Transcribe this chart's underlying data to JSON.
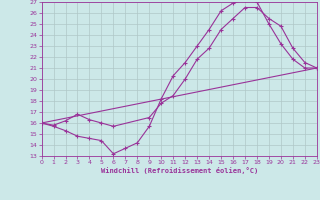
{
  "xlabel": "Windchill (Refroidissement éolien,°C)",
  "xlim": [
    0,
    23
  ],
  "ylim": [
    13,
    27
  ],
  "xticks": [
    0,
    1,
    2,
    3,
    4,
    5,
    6,
    7,
    8,
    9,
    10,
    11,
    12,
    13,
    14,
    15,
    16,
    17,
    18,
    19,
    20,
    21,
    22,
    23
  ],
  "yticks": [
    13,
    14,
    15,
    16,
    17,
    18,
    19,
    20,
    21,
    22,
    23,
    24,
    25,
    26,
    27
  ],
  "bg_color": "#cce8e8",
  "grid_color": "#b0c8c8",
  "line_color": "#993399",
  "line1_x": [
    0,
    1,
    2,
    3,
    4,
    5,
    6,
    7,
    8,
    9,
    10,
    11,
    12,
    13,
    14,
    15,
    16,
    17,
    18,
    19,
    20,
    21,
    22,
    23
  ],
  "line1_y": [
    16.0,
    15.7,
    15.3,
    14.8,
    14.6,
    14.4,
    13.2,
    13.7,
    14.2,
    15.7,
    18.2,
    20.3,
    21.5,
    23.0,
    24.5,
    26.2,
    26.9,
    27.2,
    27.0,
    25.0,
    23.2,
    21.8,
    21.0,
    21.0
  ],
  "line2_x": [
    0,
    1,
    2,
    3,
    4,
    5,
    6,
    9,
    10,
    11,
    12,
    13,
    14,
    15,
    16,
    17,
    18,
    19,
    20,
    21,
    22,
    23
  ],
  "line2_y": [
    16.0,
    15.8,
    16.2,
    16.8,
    16.3,
    16.0,
    15.7,
    16.5,
    17.8,
    18.5,
    20.0,
    21.8,
    22.8,
    24.5,
    25.5,
    26.5,
    26.5,
    25.5,
    24.8,
    22.8,
    21.5,
    21.0
  ],
  "line3_x": [
    0,
    23
  ],
  "line3_y": [
    16.0,
    21.0
  ]
}
